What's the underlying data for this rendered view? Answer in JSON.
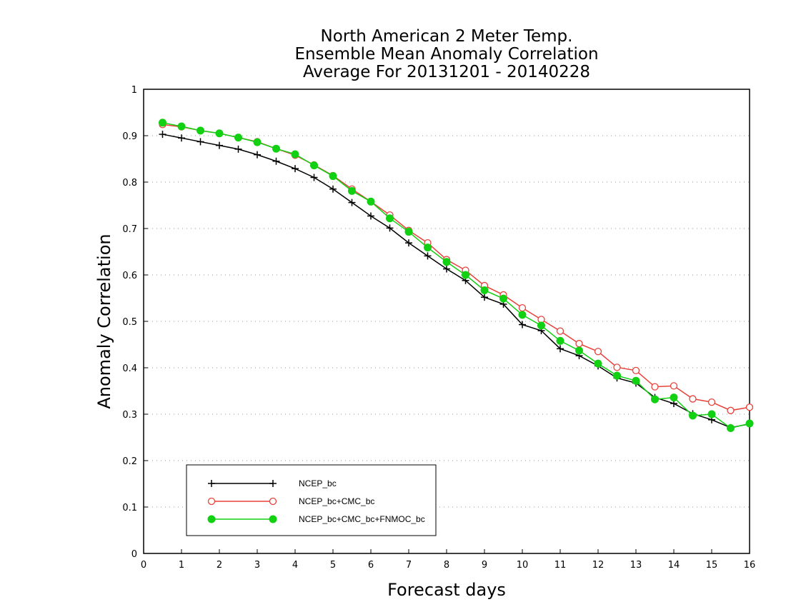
{
  "chart_data": {
    "type": "line",
    "title_lines": [
      "North American 2 Meter Temp.",
      "Ensemble Mean Anomaly Correlation",
      "Average For 20131201 - 20140228"
    ],
    "xlabel": "Forecast days",
    "ylabel": "Anomaly Correlation",
    "xlim": [
      0,
      16
    ],
    "ylim": [
      0,
      1
    ],
    "x_ticks": [
      0,
      1,
      2,
      3,
      4,
      5,
      6,
      7,
      8,
      9,
      10,
      11,
      12,
      13,
      14,
      15,
      16
    ],
    "y_ticks": [
      0,
      0.1,
      0.2,
      0.3,
      0.4,
      0.5,
      0.6,
      0.7,
      0.8,
      0.9,
      1
    ],
    "y_tick_labels": [
      "0",
      "0.1",
      "0.2",
      "0.3",
      "0.4",
      "0.5",
      "0.6",
      "0.7",
      "0.8",
      "0.9",
      "1"
    ],
    "grid": "horizontal dotted",
    "legend_position": "bottom-left",
    "x": [
      0.5,
      1,
      1.5,
      2,
      2.5,
      3,
      3.5,
      4,
      4.5,
      5,
      5.5,
      6,
      6.5,
      7,
      7.5,
      8,
      8.5,
      9,
      9.5,
      10,
      10.5,
      11,
      11.5,
      12,
      12.5,
      13,
      13.5,
      14,
      14.5,
      15,
      15.5,
      16
    ],
    "series": [
      {
        "name": "NCEP_bc",
        "color": "#000000",
        "marker": "plus",
        "values": [
          0.903,
          0.895,
          0.887,
          0.879,
          0.871,
          0.859,
          0.845,
          0.829,
          0.81,
          0.785,
          0.756,
          0.727,
          0.701,
          0.669,
          0.641,
          0.613,
          0.588,
          0.552,
          0.537,
          0.493,
          0.48,
          0.441,
          0.426,
          0.404,
          0.378,
          0.367,
          0.336,
          0.323,
          0.301,
          0.288,
          0.271,
          0.279
        ]
      },
      {
        "name": "NCEP_bc+CMC_bc",
        "color": "#e8413a",
        "marker": "open-circle",
        "values": [
          0.924,
          0.919,
          0.911,
          0.905,
          0.896,
          0.887,
          0.872,
          0.858,
          0.837,
          0.814,
          0.785,
          0.758,
          0.729,
          0.696,
          0.669,
          0.633,
          0.61,
          0.577,
          0.557,
          0.529,
          0.504,
          0.479,
          0.452,
          0.435,
          0.401,
          0.394,
          0.359,
          0.361,
          0.333,
          0.326,
          0.308,
          0.315
        ]
      },
      {
        "name": "NCEP_bc+CMC_bc+FNMOC_bc",
        "color": "#12d012",
        "marker": "filled-circle",
        "values": [
          0.928,
          0.92,
          0.911,
          0.905,
          0.896,
          0.886,
          0.872,
          0.86,
          0.836,
          0.813,
          0.781,
          0.758,
          0.722,
          0.693,
          0.659,
          0.628,
          0.6,
          0.567,
          0.549,
          0.514,
          0.491,
          0.458,
          0.437,
          0.409,
          0.383,
          0.372,
          0.332,
          0.336,
          0.297,
          0.3,
          0.27,
          0.28
        ]
      }
    ]
  }
}
